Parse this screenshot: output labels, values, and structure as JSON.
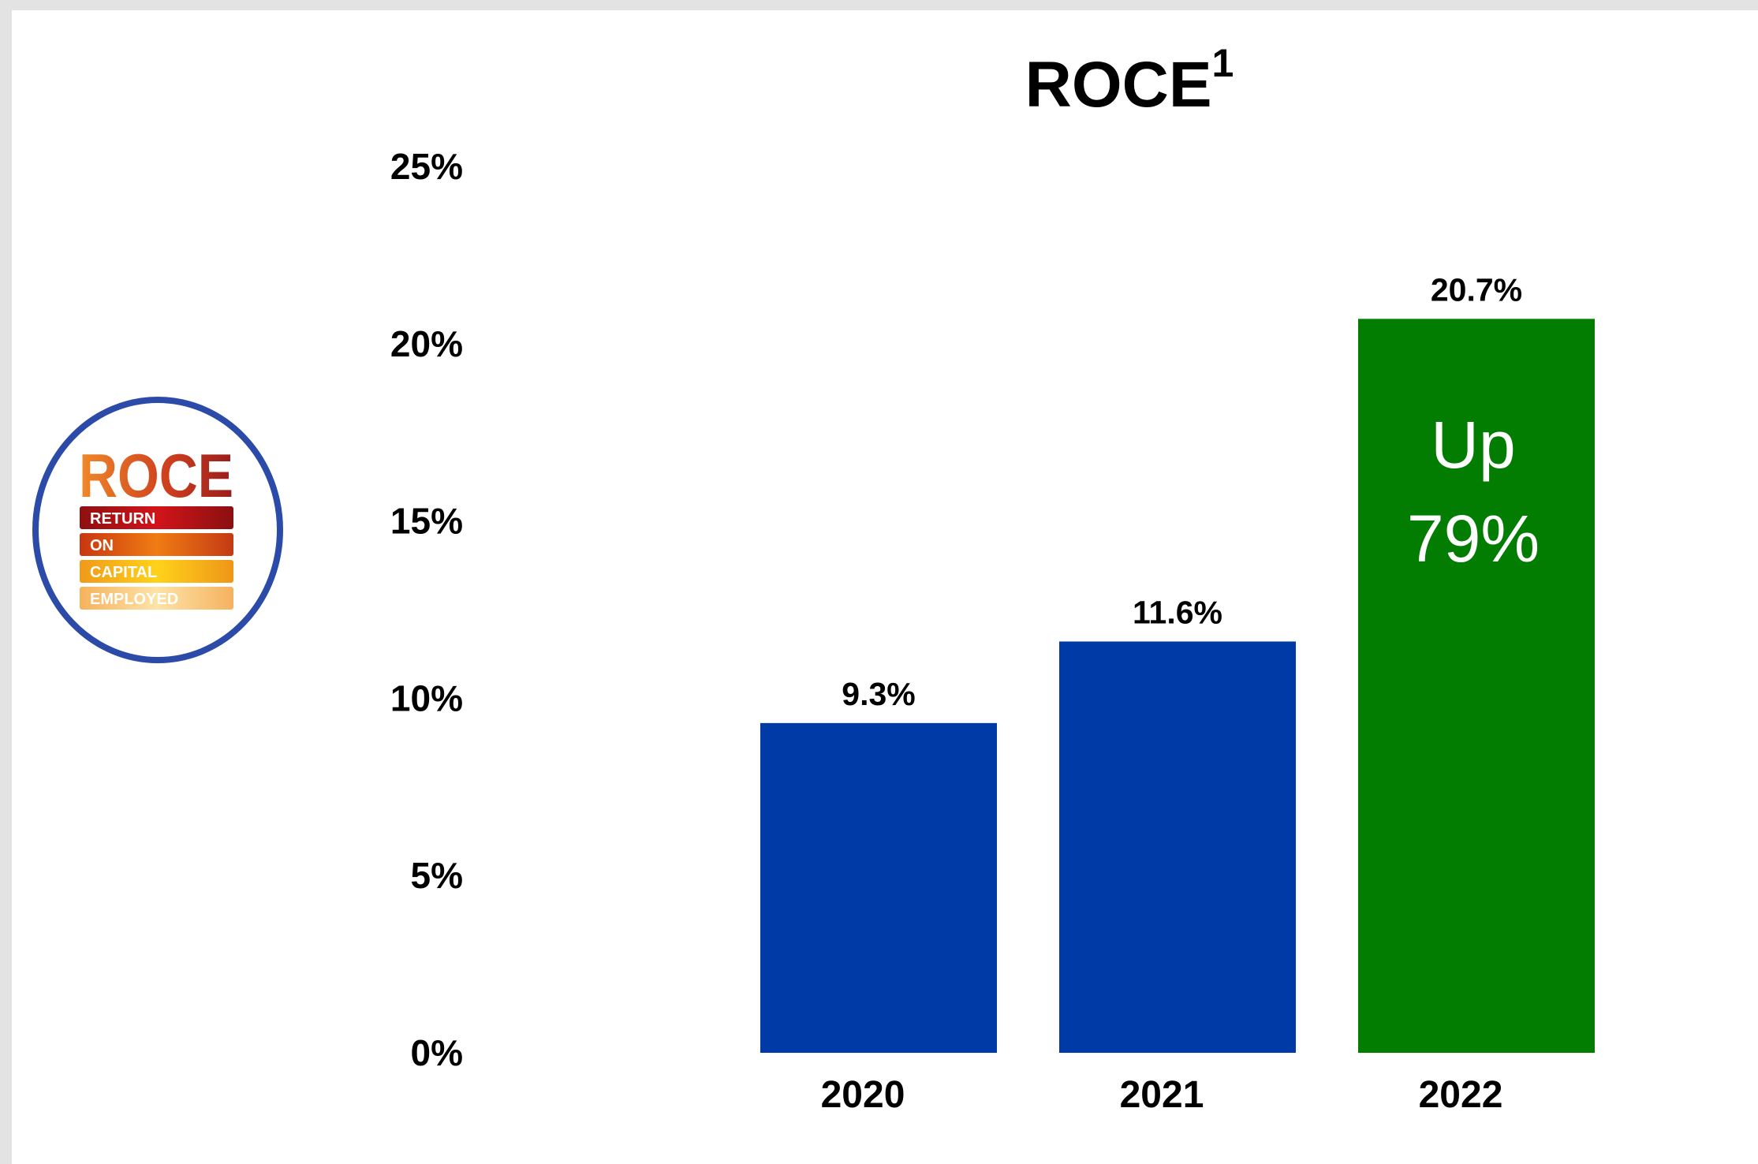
{
  "chart_data": {
    "type": "bar",
    "title": "ROCE",
    "title_superscript": "1",
    "categories": [
      "2020",
      "2021",
      "2022"
    ],
    "values": [
      9.3,
      11.6,
      20.7
    ],
    "data_labels": [
      "9.3%",
      "11.6%",
      "20.7%"
    ],
    "bar_colors": [
      "#003aa6",
      "#003aa6",
      "#037c02"
    ],
    "ylim": [
      0,
      25
    ],
    "yticks": [
      0,
      5,
      10,
      15,
      20,
      25
    ],
    "ytick_labels": [
      "0%",
      "5%",
      "10%",
      "15%",
      "20%",
      "25%"
    ],
    "grid": false,
    "legend": "none",
    "annotation": {
      "category": "2022",
      "line1": "Up",
      "line2": "79%",
      "color": "#ffffff"
    }
  },
  "badge": {
    "heading": "ROCE",
    "lines": [
      "RETURN",
      "ON",
      "CAPITAL",
      "EMPLOYED"
    ],
    "ring_color": "#2c4aa8"
  }
}
